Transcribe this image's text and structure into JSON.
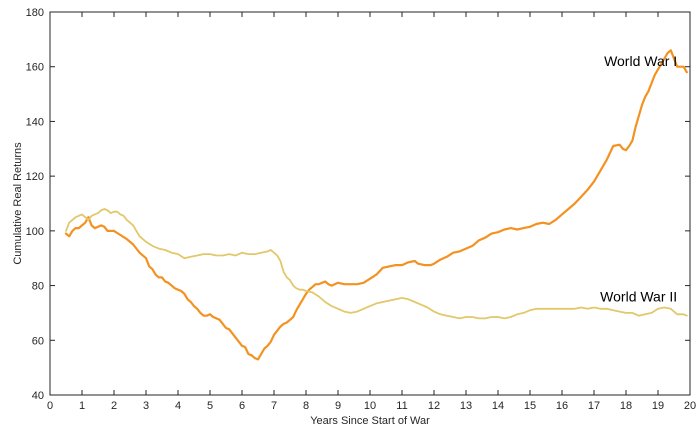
{
  "chart_data": {
    "type": "line",
    "title": "",
    "xlabel": "Years Since Start of War",
    "ylabel": "Cumulative Real Returns",
    "xlim": [
      0,
      20
    ],
    "ylim": [
      40,
      180
    ],
    "xticks": [
      "0",
      "1",
      "2",
      "3",
      "4",
      "5",
      "6",
      "7",
      "8",
      "9",
      "10",
      "11",
      "12",
      "13",
      "14",
      "15",
      "16",
      "17",
      "18",
      "19",
      "20"
    ],
    "yticks": [
      "40",
      "60",
      "80",
      "100",
      "120",
      "140",
      "160",
      "180"
    ],
    "grid": false,
    "legend": "none",
    "annotations": [
      {
        "text": "World War I",
        "x": 19.6,
        "y": 162
      },
      {
        "text": "World War II",
        "x": 19.6,
        "y": 76
      }
    ],
    "series": [
      {
        "name": "World War I",
        "color": "#f39221",
        "points": [
          [
            0.5,
            99
          ],
          [
            0.6,
            98
          ],
          [
            0.7,
            100
          ],
          [
            0.8,
            101
          ],
          [
            0.9,
            101
          ],
          [
            1.0,
            102
          ],
          [
            1.1,
            103
          ],
          [
            1.2,
            105
          ],
          [
            1.3,
            102
          ],
          [
            1.4,
            101
          ],
          [
            1.5,
            101.5
          ],
          [
            1.6,
            102
          ],
          [
            1.7,
            101.5
          ],
          [
            1.8,
            100
          ],
          [
            2.0,
            100
          ],
          [
            2.2,
            98.5
          ],
          [
            2.4,
            97
          ],
          [
            2.6,
            95
          ],
          [
            2.8,
            92
          ],
          [
            3.0,
            90
          ],
          [
            3.1,
            87
          ],
          [
            3.2,
            86
          ],
          [
            3.3,
            84
          ],
          [
            3.4,
            83
          ],
          [
            3.5,
            83
          ],
          [
            3.6,
            81.5
          ],
          [
            3.7,
            81
          ],
          [
            3.8,
            80
          ],
          [
            3.9,
            79
          ],
          [
            4.0,
            78.5
          ],
          [
            4.1,
            78
          ],
          [
            4.2,
            77
          ],
          [
            4.3,
            75
          ],
          [
            4.4,
            74
          ],
          [
            4.5,
            72.5
          ],
          [
            4.6,
            71.5
          ],
          [
            4.7,
            70
          ],
          [
            4.8,
            69
          ],
          [
            4.9,
            69
          ],
          [
            5.0,
            69.5
          ],
          [
            5.1,
            68.5
          ],
          [
            5.2,
            68
          ],
          [
            5.3,
            67.5
          ],
          [
            5.4,
            66
          ],
          [
            5.5,
            64.5
          ],
          [
            5.6,
            64
          ],
          [
            5.7,
            62.5
          ],
          [
            5.8,
            61
          ],
          [
            5.9,
            59.5
          ],
          [
            6.0,
            58
          ],
          [
            6.1,
            57.5
          ],
          [
            6.2,
            55
          ],
          [
            6.3,
            54.5
          ],
          [
            6.4,
            53.5
          ],
          [
            6.5,
            53
          ],
          [
            6.6,
            55
          ],
          [
            6.7,
            57
          ],
          [
            6.8,
            58
          ],
          [
            6.9,
            59.5
          ],
          [
            7.0,
            62
          ],
          [
            7.1,
            63.5
          ],
          [
            7.2,
            65
          ],
          [
            7.3,
            66
          ],
          [
            7.4,
            66.5
          ],
          [
            7.5,
            67.5
          ],
          [
            7.6,
            68.5
          ],
          [
            7.7,
            71
          ],
          [
            7.8,
            73
          ],
          [
            7.9,
            75
          ],
          [
            8.0,
            77
          ],
          [
            8.1,
            78.5
          ],
          [
            8.2,
            79.5
          ],
          [
            8.3,
            80.5
          ],
          [
            8.4,
            80.5
          ],
          [
            8.5,
            81
          ],
          [
            8.6,
            81.5
          ],
          [
            8.7,
            80.5
          ],
          [
            8.8,
            80
          ],
          [
            8.9,
            80.5
          ],
          [
            9.0,
            81
          ],
          [
            9.2,
            80.5
          ],
          [
            9.4,
            80.5
          ],
          [
            9.6,
            80.5
          ],
          [
            9.8,
            81
          ],
          [
            10.0,
            82.5
          ],
          [
            10.2,
            84
          ],
          [
            10.4,
            86.5
          ],
          [
            10.6,
            87
          ],
          [
            10.8,
            87.5
          ],
          [
            11.0,
            87.5
          ],
          [
            11.2,
            88.5
          ],
          [
            11.4,
            89
          ],
          [
            11.5,
            88
          ],
          [
            11.7,
            87.5
          ],
          [
            11.9,
            87.5
          ],
          [
            12.0,
            88
          ],
          [
            12.2,
            89.5
          ],
          [
            12.4,
            90.5
          ],
          [
            12.6,
            92
          ],
          [
            12.8,
            92.5
          ],
          [
            13.0,
            93.5
          ],
          [
            13.2,
            94.5
          ],
          [
            13.4,
            96.5
          ],
          [
            13.6,
            97.5
          ],
          [
            13.8,
            99
          ],
          [
            14.0,
            99.5
          ],
          [
            14.2,
            100.5
          ],
          [
            14.4,
            101
          ],
          [
            14.6,
            100.5
          ],
          [
            14.8,
            101
          ],
          [
            15.0,
            101.5
          ],
          [
            15.2,
            102.5
          ],
          [
            15.4,
            103
          ],
          [
            15.6,
            102.5
          ],
          [
            15.8,
            104
          ],
          [
            16.0,
            106
          ],
          [
            16.2,
            108
          ],
          [
            16.4,
            110
          ],
          [
            16.6,
            112.5
          ],
          [
            16.8,
            115
          ],
          [
            17.0,
            118
          ],
          [
            17.2,
            122
          ],
          [
            17.4,
            126
          ],
          [
            17.6,
            131
          ],
          [
            17.8,
            131.5
          ],
          [
            17.9,
            130
          ],
          [
            18.0,
            129.5
          ],
          [
            18.1,
            131
          ],
          [
            18.2,
            133
          ],
          [
            18.3,
            138
          ],
          [
            18.4,
            142
          ],
          [
            18.5,
            146
          ],
          [
            18.6,
            149
          ],
          [
            18.7,
            151
          ],
          [
            18.8,
            154
          ],
          [
            18.9,
            157
          ],
          [
            19.0,
            159
          ],
          [
            19.1,
            161
          ],
          [
            19.2,
            163
          ],
          [
            19.3,
            165
          ],
          [
            19.4,
            166
          ],
          [
            19.5,
            163
          ],
          [
            19.6,
            160
          ],
          [
            19.7,
            160
          ],
          [
            19.8,
            160
          ],
          [
            19.9,
            158
          ]
        ]
      },
      {
        "name": "World War II",
        "color": "#e1c86a",
        "points": [
          [
            0.5,
            100
          ],
          [
            0.6,
            103
          ],
          [
            0.7,
            104
          ],
          [
            0.8,
            105
          ],
          [
            0.9,
            105.5
          ],
          [
            1.0,
            106
          ],
          [
            1.1,
            105
          ],
          [
            1.2,
            104
          ],
          [
            1.3,
            105.5
          ],
          [
            1.4,
            106
          ],
          [
            1.5,
            106.5
          ],
          [
            1.6,
            107.5
          ],
          [
            1.7,
            108
          ],
          [
            1.8,
            107.5
          ],
          [
            1.9,
            106.5
          ],
          [
            2.0,
            107
          ],
          [
            2.1,
            107
          ],
          [
            2.2,
            106
          ],
          [
            2.3,
            105.5
          ],
          [
            2.4,
            104
          ],
          [
            2.5,
            103
          ],
          [
            2.6,
            102
          ],
          [
            2.7,
            100
          ],
          [
            2.8,
            98
          ],
          [
            3.0,
            96
          ],
          [
            3.2,
            94.5
          ],
          [
            3.4,
            93.5
          ],
          [
            3.6,
            93
          ],
          [
            3.8,
            92
          ],
          [
            4.0,
            91.5
          ],
          [
            4.2,
            90
          ],
          [
            4.4,
            90.5
          ],
          [
            4.6,
            91
          ],
          [
            4.8,
            91.5
          ],
          [
            5.0,
            91.5
          ],
          [
            5.2,
            91
          ],
          [
            5.4,
            91
          ],
          [
            5.6,
            91.5
          ],
          [
            5.8,
            91
          ],
          [
            6.0,
            92
          ],
          [
            6.2,
            91.5
          ],
          [
            6.4,
            91.5
          ],
          [
            6.6,
            92
          ],
          [
            6.8,
            92.5
          ],
          [
            6.9,
            93
          ],
          [
            7.0,
            92
          ],
          [
            7.1,
            91
          ],
          [
            7.2,
            89
          ],
          [
            7.3,
            85
          ],
          [
            7.4,
            83
          ],
          [
            7.5,
            82
          ],
          [
            7.6,
            80
          ],
          [
            7.7,
            79
          ],
          [
            7.8,
            78.5
          ],
          [
            7.9,
            78.5
          ],
          [
            8.0,
            78
          ],
          [
            8.2,
            77.5
          ],
          [
            8.4,
            76
          ],
          [
            8.6,
            74
          ],
          [
            8.8,
            72.5
          ],
          [
            9.0,
            71.5
          ],
          [
            9.2,
            70.5
          ],
          [
            9.4,
            70
          ],
          [
            9.6,
            70.5
          ],
          [
            9.8,
            71.5
          ],
          [
            10.0,
            72.5
          ],
          [
            10.2,
            73.5
          ],
          [
            10.4,
            74
          ],
          [
            10.6,
            74.5
          ],
          [
            10.8,
            75
          ],
          [
            11.0,
            75.5
          ],
          [
            11.2,
            75
          ],
          [
            11.4,
            74
          ],
          [
            11.6,
            73
          ],
          [
            11.8,
            72
          ],
          [
            12.0,
            70.5
          ],
          [
            12.2,
            69.5
          ],
          [
            12.4,
            69
          ],
          [
            12.6,
            68.5
          ],
          [
            12.8,
            68
          ],
          [
            13.0,
            68.5
          ],
          [
            13.2,
            68.5
          ],
          [
            13.4,
            68
          ],
          [
            13.6,
            68
          ],
          [
            13.8,
            68.5
          ],
          [
            14.0,
            68.5
          ],
          [
            14.2,
            68
          ],
          [
            14.4,
            68.5
          ],
          [
            14.6,
            69.5
          ],
          [
            14.8,
            70
          ],
          [
            15.0,
            71
          ],
          [
            15.2,
            71.5
          ],
          [
            15.4,
            71.5
          ],
          [
            15.6,
            71.5
          ],
          [
            15.8,
            71.5
          ],
          [
            16.0,
            71.5
          ],
          [
            16.2,
            71.5
          ],
          [
            16.4,
            71.5
          ],
          [
            16.6,
            72
          ],
          [
            16.8,
            71.5
          ],
          [
            17.0,
            72
          ],
          [
            17.2,
            71.5
          ],
          [
            17.4,
            71.5
          ],
          [
            17.6,
            71
          ],
          [
            17.8,
            70.5
          ],
          [
            18.0,
            70
          ],
          [
            18.2,
            70
          ],
          [
            18.4,
            69
          ],
          [
            18.6,
            69.5
          ],
          [
            18.8,
            70
          ],
          [
            19.0,
            71.5
          ],
          [
            19.2,
            72
          ],
          [
            19.4,
            71.5
          ],
          [
            19.6,
            69.5
          ],
          [
            19.8,
            69.5
          ],
          [
            19.9,
            69
          ]
        ]
      }
    ]
  }
}
